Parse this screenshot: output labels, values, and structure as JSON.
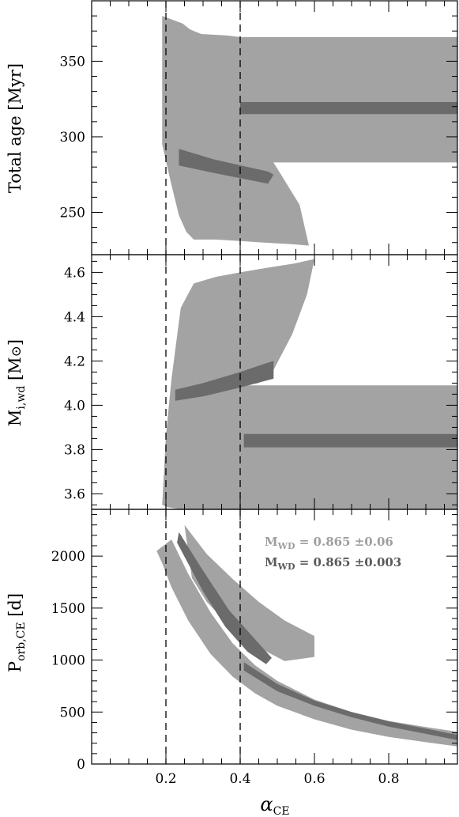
{
  "chart_data": [
    {
      "type": "area",
      "panel": "top",
      "ylabel": "Total age [Myr]",
      "ylim": [
        222,
        390
      ],
      "xlim": [
        0.0,
        0.985
      ],
      "yticks_major": [
        250,
        300,
        350
      ],
      "vlines": [
        0.2,
        0.4
      ],
      "series": [
        {
          "shade": "light",
          "regions": [
            {
              "x": [
                0.19,
                0.245,
                0.265,
                0.295,
                0.365,
                0.4,
                0.4,
                0.44,
                0.5,
                0.56,
                0.585,
                0.535,
                0.465,
                0.4,
                0.335,
                0.275,
                0.255,
                0.235,
                0.215,
                0.19
              ],
              "y": [
                380,
                375,
                371,
                368,
                367,
                366,
                328,
                302,
                279,
                255,
                228,
                229,
                230,
                231,
                232,
                232,
                237,
                248,
                268,
                295
              ]
            },
            {
              "x": [
                0.4,
                0.985,
                0.985,
                0.4
              ],
              "y": [
                366,
                366,
                283,
                283
              ]
            }
          ]
        },
        {
          "shade": "dark",
          "regions": [
            {
              "x": [
                0.235,
                0.33,
                0.475,
                0.49,
                0.475,
                0.33,
                0.235
              ],
              "y": [
                292,
                285,
                277,
                275,
                269,
                276,
                281
              ]
            },
            {
              "x": [
                0.4,
                0.985,
                0.985,
                0.4
              ],
              "y": [
                323,
                323,
                315,
                315
              ]
            }
          ]
        }
      ]
    },
    {
      "type": "area",
      "panel": "middle",
      "ylabel": "M_{i,wd} [M_⊙]",
      "ylim": [
        3.53,
        4.68
      ],
      "xlim": [
        0.0,
        0.985
      ],
      "yticks_major": [
        3.6,
        3.8,
        4.0,
        4.2,
        4.4,
        4.6
      ],
      "vlines": [
        0.2,
        0.4
      ],
      "series": [
        {
          "shade": "light",
          "regions": [
            {
              "x": [
                0.19,
                0.2,
                0.215,
                0.24,
                0.275,
                0.335,
                0.4,
                0.47,
                0.545,
                0.6,
                0.58,
                0.54,
                0.49,
                0.45,
                0.41,
                0.4,
                0.985,
                0.985,
                0.4,
                0.24,
                0.205
              ],
              "y": [
                3.55,
                3.86,
                4.12,
                4.44,
                4.55,
                4.58,
                4.6,
                4.62,
                4.64,
                4.66,
                4.5,
                4.32,
                4.16,
                4.1,
                4.09,
                4.09,
                4.09,
                3.53,
                3.53,
                3.53,
                3.54
              ]
            }
          ]
        },
        {
          "shade": "dark",
          "regions": [
            {
              "x": [
                0.225,
                0.3,
                0.4,
                0.47,
                0.49,
                0.49,
                0.4,
                0.3,
                0.225
              ],
              "y": [
                4.07,
                4.1,
                4.15,
                4.19,
                4.2,
                4.12,
                4.08,
                4.04,
                4.02
              ]
            },
            {
              "x": [
                0.41,
                0.985,
                0.985,
                0.41
              ],
              "y": [
                3.87,
                3.87,
                3.81,
                3.81
              ]
            }
          ]
        }
      ]
    },
    {
      "type": "area",
      "panel": "bottom",
      "xlabel": "α_CE",
      "ylabel": "P_{orb,CE} [d]",
      "ylim": [
        0,
        2450
      ],
      "xlim": [
        0.0,
        0.985
      ],
      "yticks_major": [
        0,
        500,
        1000,
        1500,
        2000
      ],
      "xticks_major": [
        0.2,
        0.4,
        0.6,
        0.8
      ],
      "vlines": [
        0.2,
        0.4
      ],
      "legend_position": "top-right",
      "legend": [
        {
          "shade": "light",
          "symbol": "M",
          "subscript": "WD",
          "text": "= 0.865 ±0.06"
        },
        {
          "shade": "dark",
          "symbol": "M",
          "subscript": "WD",
          "text": "= 0.865 ±0.003"
        }
      ],
      "series": [
        {
          "shade": "light",
          "regions": [
            {
              "x": [
                0.25,
                0.31,
                0.38,
                0.45,
                0.52,
                0.6,
                0.6,
                0.52,
                0.45,
                0.38,
                0.31,
                0.27
              ],
              "y": [
                2300,
                2020,
                1780,
                1560,
                1380,
                1230,
                1030,
                990,
                1120,
                1300,
                1560,
                1790
              ]
            },
            {
              "x": [
                0.175,
                0.215,
                0.26,
                0.32,
                0.38,
                0.44,
                0.5,
                0.6,
                0.7,
                0.8,
                0.9,
                0.985,
                0.985,
                0.9,
                0.8,
                0.7,
                0.6,
                0.5,
                0.44,
                0.38,
                0.32,
                0.26,
                0.215,
                0.19
              ],
              "y": [
                2050,
                2160,
                1830,
                1460,
                1160,
                950,
                800,
                620,
                500,
                415,
                355,
                310,
                170,
                210,
                260,
                330,
                430,
                560,
                680,
                840,
                1060,
                1380,
                1700,
                1930
              ]
            }
          ]
        },
        {
          "shade": "dark",
          "regions": [
            {
              "x": [
                0.235,
                0.3,
                0.37,
                0.44,
                0.485,
                0.47,
                0.42,
                0.36,
                0.3,
                0.23
              ],
              "y": [
                2230,
                1860,
                1480,
                1200,
                1020,
                960,
                1080,
                1320,
                1660,
                2130
              ]
            },
            {
              "x": [
                0.41,
                0.5,
                0.6,
                0.7,
                0.8,
                0.9,
                0.985,
                0.985,
                0.9,
                0.8,
                0.7,
                0.6,
                0.5,
                0.41
              ],
              "y": [
                980,
                770,
                610,
                500,
                410,
                340,
                280,
                230,
                290,
                360,
                450,
                560,
                700,
                900
              ]
            }
          ]
        }
      ]
    }
  ],
  "colors": {
    "light": "#a3a3a3",
    "dark": "#6b6b6b",
    "legend_light": "#9e9e9e",
    "legend_dark": "#595959"
  }
}
